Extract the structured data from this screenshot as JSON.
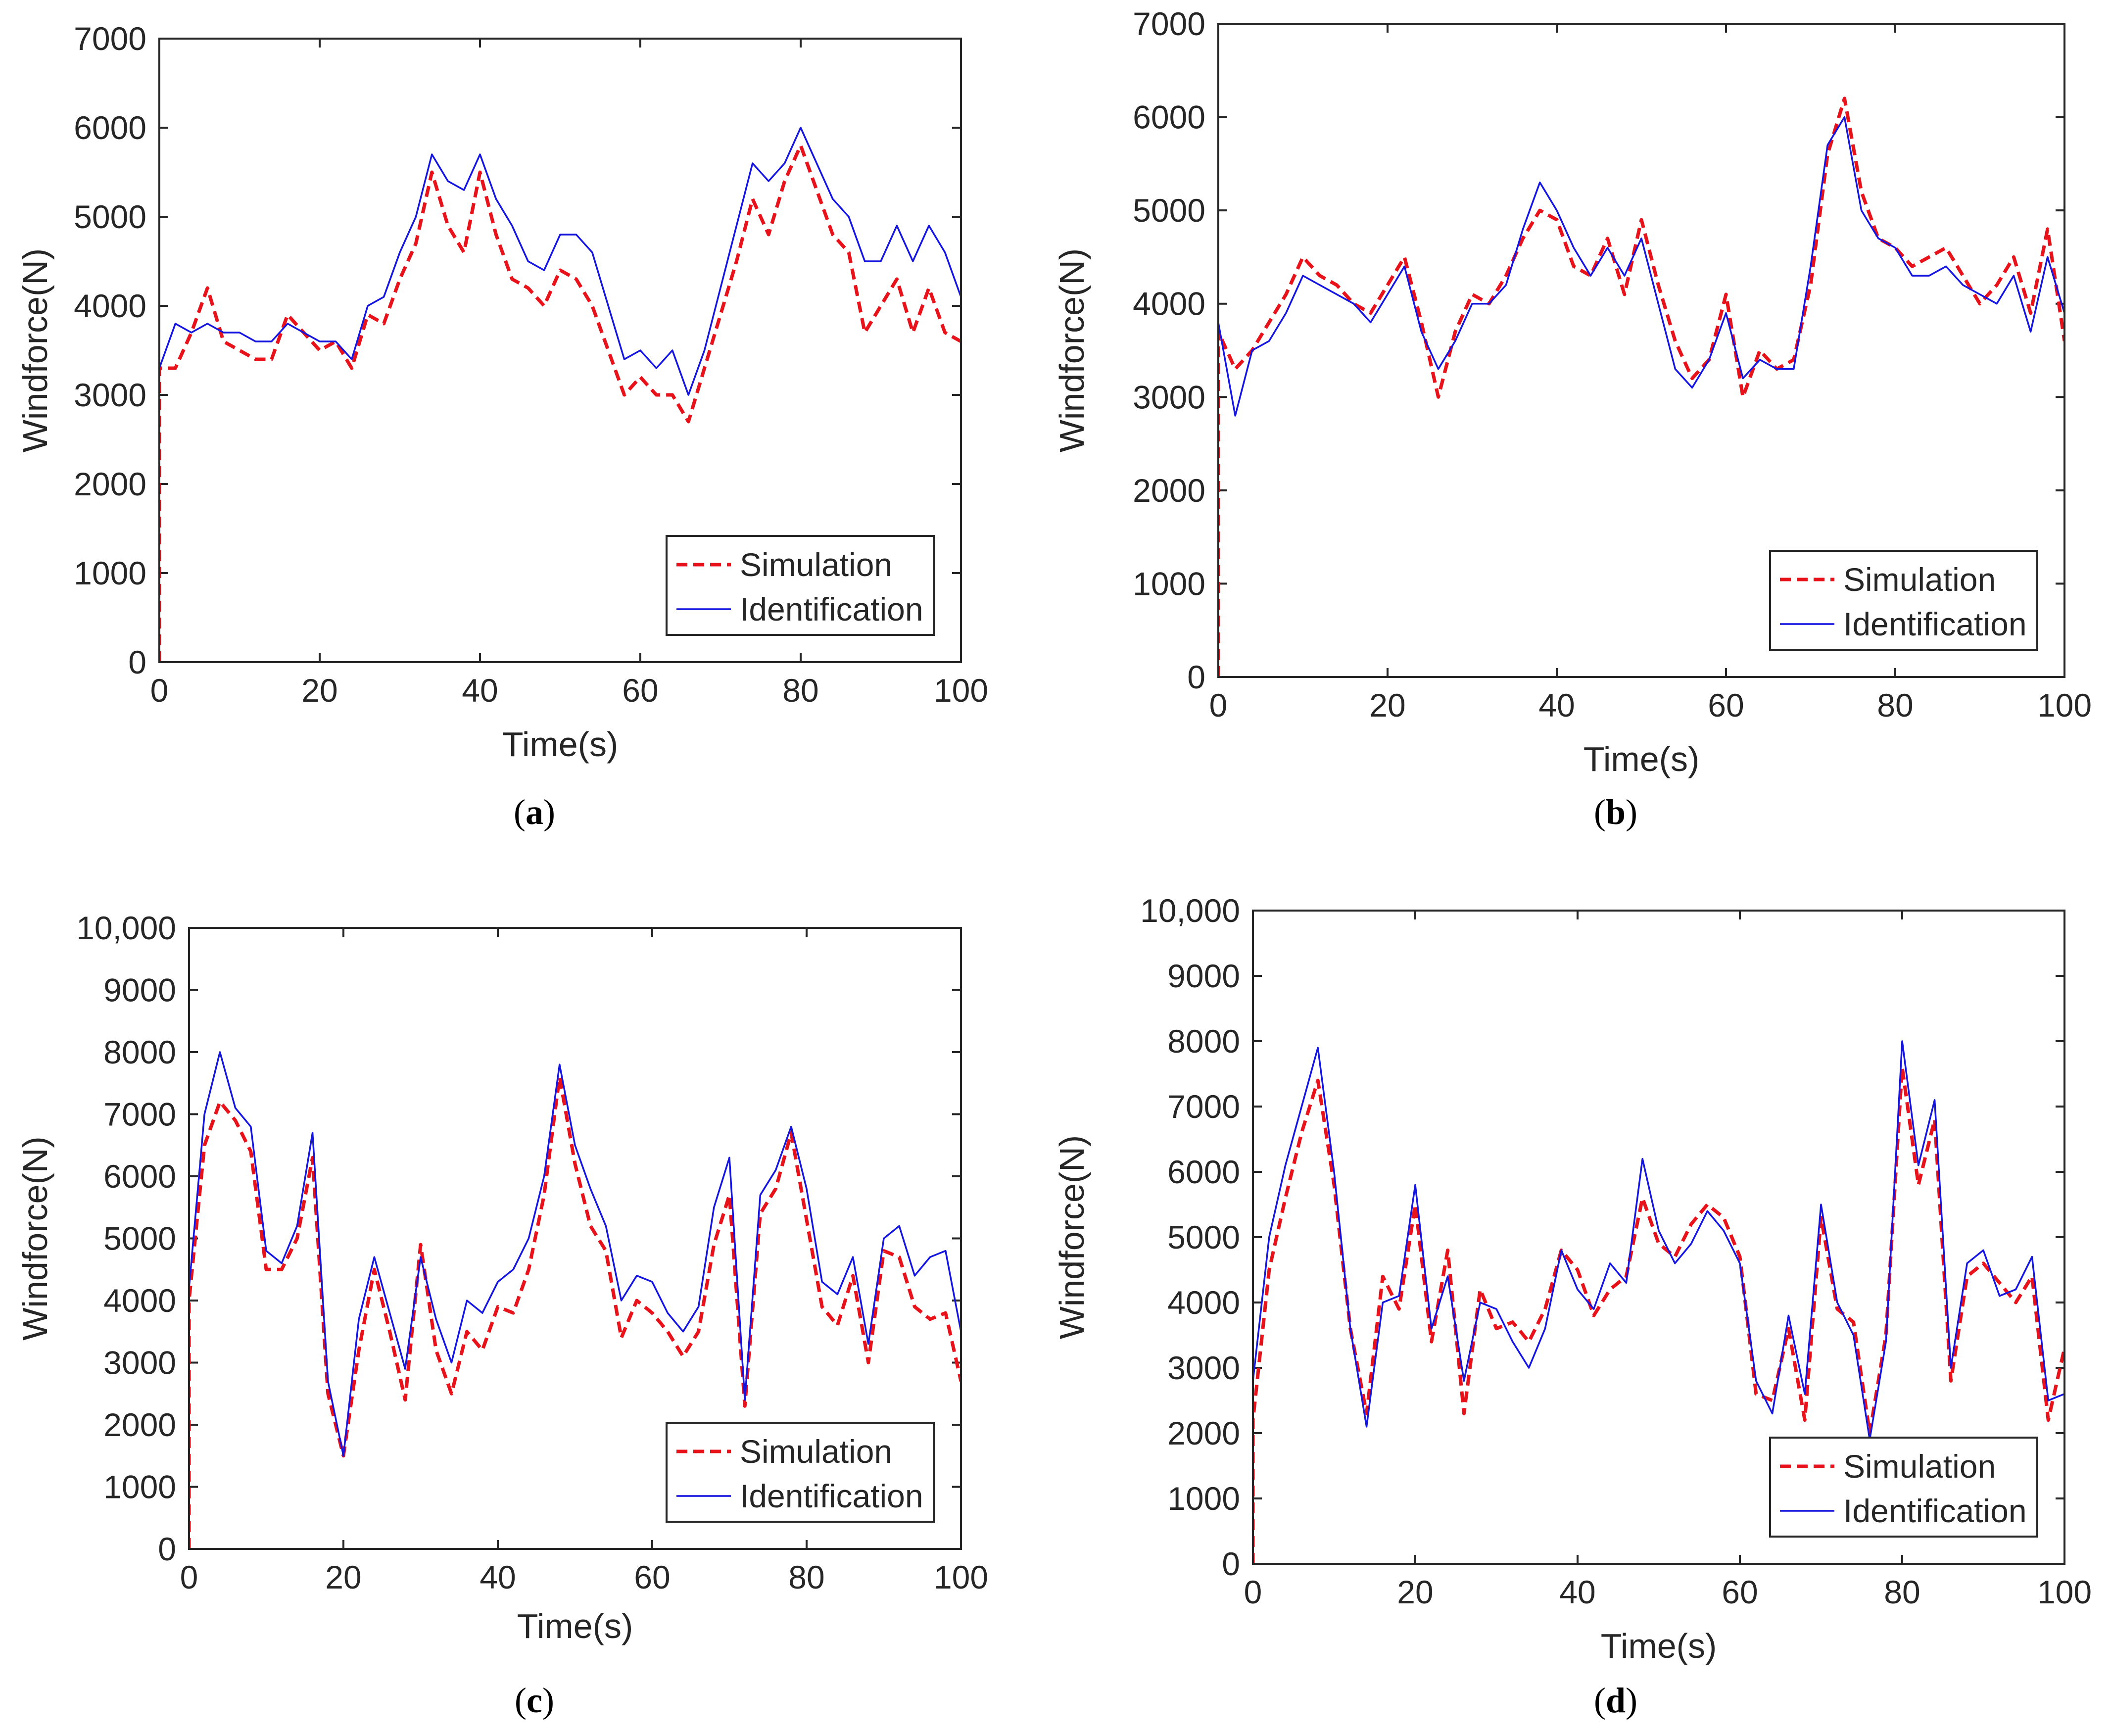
{
  "colors": {
    "simulation": "#e8121b",
    "identification": "#1515e0",
    "axis": "#262626"
  },
  "chart_data": [
    {
      "id": "a",
      "caption_letter": "a",
      "type": "line",
      "xlabel": "Time(s)",
      "ylabel": "Windforce(N)",
      "xlim": [
        0,
        100
      ],
      "ylim": [
        0,
        7000
      ],
      "xticks": [
        "0",
        "20",
        "40",
        "60",
        "80",
        "100"
      ],
      "yticks": [
        "0",
        "1000",
        "2000",
        "3000",
        "4000",
        "5000",
        "6000",
        "7000"
      ],
      "legend": {
        "position": "bottom-right"
      },
      "x": [
        0,
        2,
        4,
        6,
        8,
        10,
        12,
        14,
        16,
        18,
        20,
        22,
        24,
        26,
        28,
        30,
        32,
        34,
        36,
        38,
        40,
        42,
        44,
        46,
        48,
        50,
        52,
        54,
        56,
        58,
        60,
        62,
        64,
        66,
        68,
        70,
        72,
        74,
        76,
        78,
        80,
        82,
        84,
        86,
        88,
        90,
        92,
        94,
        96,
        98,
        100
      ],
      "series": [
        {
          "name": "Simulation",
          "style": "dashed",
          "values": [
            3300,
            3300,
            3700,
            4200,
            3600,
            3500,
            3400,
            3400,
            3900,
            3700,
            3500,
            3600,
            3300,
            3900,
            3800,
            4300,
            4700,
            5500,
            4900,
            4600,
            5500,
            4800,
            4300,
            4200,
            4000,
            4400,
            4300,
            4000,
            3500,
            3000,
            3200,
            3000,
            3000,
            2700,
            3300,
            3900,
            4500,
            5200,
            4800,
            5400,
            5800,
            5300,
            4800,
            4600,
            3700,
            4000,
            4300,
            3700,
            4200,
            3700,
            3600
          ]
        },
        {
          "name": "Identification",
          "style": "solid",
          "values": [
            3300,
            3800,
            3700,
            3800,
            3700,
            3700,
            3600,
            3600,
            3800,
            3700,
            3600,
            3600,
            3400,
            4000,
            4100,
            4600,
            5000,
            5700,
            5400,
            5300,
            5700,
            5200,
            4900,
            4500,
            4400,
            4800,
            4800,
            4600,
            4000,
            3400,
            3500,
            3300,
            3500,
            3000,
            3500,
            4200,
            4900,
            5600,
            5400,
            5600,
            6000,
            5600,
            5200,
            5000,
            4500,
            4500,
            4900,
            4500,
            4900,
            4600,
            4100
          ]
        }
      ]
    },
    {
      "id": "b",
      "caption_letter": "b",
      "type": "line",
      "xlabel": "Time(s)",
      "ylabel": "Windforce(N)",
      "xlim": [
        0,
        100
      ],
      "ylim": [
        0,
        7000
      ],
      "xticks": [
        "0",
        "20",
        "40",
        "60",
        "80",
        "100"
      ],
      "yticks": [
        "0",
        "1000",
        "2000",
        "3000",
        "4000",
        "5000",
        "6000",
        "7000"
      ],
      "legend": {
        "position": "bottom-right"
      },
      "x": [
        0,
        2,
        4,
        6,
        8,
        10,
        12,
        14,
        16,
        18,
        20,
        22,
        24,
        26,
        28,
        30,
        32,
        34,
        36,
        38,
        40,
        42,
        44,
        46,
        48,
        50,
        52,
        54,
        56,
        58,
        60,
        62,
        64,
        66,
        68,
        70,
        72,
        74,
        76,
        78,
        80,
        82,
        84,
        86,
        88,
        90,
        92,
        94,
        96,
        98,
        100
      ],
      "series": [
        {
          "name": "Simulation",
          "style": "dashed",
          "values": [
            3700,
            3300,
            3500,
            3800,
            4100,
            4500,
            4300,
            4200,
            4000,
            3900,
            4200,
            4500,
            3800,
            3000,
            3700,
            4100,
            4000,
            4300,
            4700,
            5000,
            4900,
            4400,
            4300,
            4700,
            4100,
            4900,
            4200,
            3600,
            3200,
            3400,
            4100,
            3000,
            3500,
            3300,
            3400,
            4200,
            5600,
            6200,
            5200,
            4700,
            4600,
            4400,
            4500,
            4600,
            4300,
            4000,
            4200,
            4500,
            3900,
            4800,
            3600
          ]
        },
        {
          "name": "Identification",
          "style": "solid",
          "values": [
            3800,
            2800,
            3500,
            3600,
            3900,
            4300,
            4200,
            4100,
            4000,
            3800,
            4100,
            4400,
            3700,
            3300,
            3600,
            4000,
            4000,
            4200,
            4800,
            5300,
            5000,
            4600,
            4300,
            4600,
            4300,
            4700,
            4000,
            3300,
            3100,
            3400,
            3900,
            3200,
            3400,
            3300,
            3300,
            4400,
            5700,
            6000,
            5000,
            4700,
            4600,
            4300,
            4300,
            4400,
            4200,
            4100,
            4000,
            4300,
            3700,
            4500,
            3900
          ]
        }
      ]
    },
    {
      "id": "c",
      "caption_letter": "c",
      "type": "line",
      "xlabel": "Time(s)",
      "ylabel": "Windforce(N)",
      "xlim": [
        0,
        100
      ],
      "ylim": [
        0,
        10000
      ],
      "xticks": [
        "0",
        "20",
        "40",
        "60",
        "80",
        "100"
      ],
      "yticks": [
        "0",
        "1000",
        "2000",
        "3000",
        "4000",
        "5000",
        "6000",
        "7000",
        "8000",
        "9000",
        "10,000"
      ],
      "legend": {
        "position": "bottom-right"
      },
      "x": [
        0,
        2,
        4,
        6,
        8,
        10,
        12,
        14,
        16,
        18,
        20,
        22,
        24,
        26,
        28,
        30,
        32,
        34,
        36,
        38,
        40,
        42,
        44,
        46,
        48,
        50,
        52,
        54,
        56,
        58,
        60,
        62,
        64,
        66,
        68,
        70,
        72,
        74,
        76,
        78,
        80,
        82,
        84,
        86,
        88,
        90,
        92,
        94,
        96,
        98,
        100
      ],
      "series": [
        {
          "name": "Simulation",
          "style": "dashed",
          "values": [
            4000,
            6500,
            7200,
            6900,
            6400,
            4500,
            4500,
            5000,
            6300,
            2500,
            1500,
            3200,
            4500,
            3500,
            2400,
            4900,
            3200,
            2500,
            3500,
            3200,
            3900,
            3800,
            4500,
            5700,
            7600,
            6200,
            5200,
            4800,
            3400,
            4000,
            3800,
            3500,
            3100,
            3500,
            4900,
            5700,
            2300,
            5400,
            5800,
            6700,
            5300,
            3900,
            3600,
            4400,
            3000,
            4800,
            4700,
            3900,
            3700,
            3800,
            2700
          ]
        },
        {
          "name": "Identification",
          "style": "solid",
          "values": [
            4200,
            7000,
            8000,
            7100,
            6800,
            4800,
            4600,
            5200,
            6700,
            2700,
            1500,
            3700,
            4700,
            3800,
            2900,
            4700,
            3700,
            3000,
            4000,
            3800,
            4300,
            4500,
            5000,
            6000,
            7800,
            6500,
            5800,
            5200,
            4000,
            4400,
            4300,
            3800,
            3500,
            3900,
            5500,
            6300,
            2400,
            5700,
            6100,
            6800,
            5800,
            4300,
            4100,
            4700,
            3300,
            5000,
            5200,
            4400,
            4700,
            4800,
            3500
          ]
        }
      ]
    },
    {
      "id": "d",
      "caption_letter": "d",
      "type": "line",
      "xlabel": "Time(s)",
      "ylabel": "Windforce(N)",
      "xlim": [
        0,
        100
      ],
      "ylim": [
        0,
        10000
      ],
      "xticks": [
        "0",
        "20",
        "40",
        "60",
        "80",
        "100"
      ],
      "yticks": [
        "0",
        "1000",
        "2000",
        "3000",
        "4000",
        "5000",
        "6000",
        "7000",
        "8000",
        "9000",
        "10,000"
      ],
      "legend": {
        "position": "bottom-right"
      },
      "x": [
        0,
        2,
        4,
        6,
        8,
        10,
        12,
        14,
        16,
        18,
        20,
        22,
        24,
        26,
        28,
        30,
        32,
        34,
        36,
        38,
        40,
        42,
        44,
        46,
        48,
        50,
        52,
        54,
        56,
        58,
        60,
        62,
        64,
        66,
        68,
        70,
        72,
        74,
        76,
        78,
        80,
        82,
        84,
        86,
        88,
        90,
        92,
        94,
        96,
        98,
        100
      ],
      "series": [
        {
          "name": "Simulation",
          "style": "dashed",
          "values": [
            2200,
            4500,
            5600,
            6600,
            7400,
            5800,
            3600,
            2300,
            4400,
            3900,
            5500,
            3400,
            4800,
            2300,
            4200,
            3600,
            3700,
            3400,
            3900,
            4800,
            4500,
            3800,
            4200,
            4400,
            5600,
            4900,
            4700,
            5200,
            5500,
            5300,
            4700,
            2600,
            2500,
            3600,
            2200,
            5300,
            3900,
            3700,
            2000,
            3500,
            7600,
            5800,
            6800,
            2800,
            4400,
            4600,
            4300,
            4000,
            4400,
            2200,
            3300
          ]
        },
        {
          "name": "Identification",
          "style": "solid",
          "values": [
            2800,
            5000,
            6100,
            7000,
            7900,
            6000,
            3600,
            2100,
            4000,
            4100,
            5800,
            3600,
            4400,
            2800,
            4000,
            3900,
            3400,
            3000,
            3600,
            4800,
            4200,
            3900,
            4600,
            4300,
            6200,
            5100,
            4600,
            4900,
            5400,
            5100,
            4600,
            2800,
            2300,
            3800,
            2600,
            5500,
            4000,
            3500,
            1900,
            3400,
            8000,
            6100,
            7100,
            3000,
            4600,
            4800,
            4100,
            4200,
            4700,
            2500,
            2600
          ]
        }
      ]
    }
  ]
}
